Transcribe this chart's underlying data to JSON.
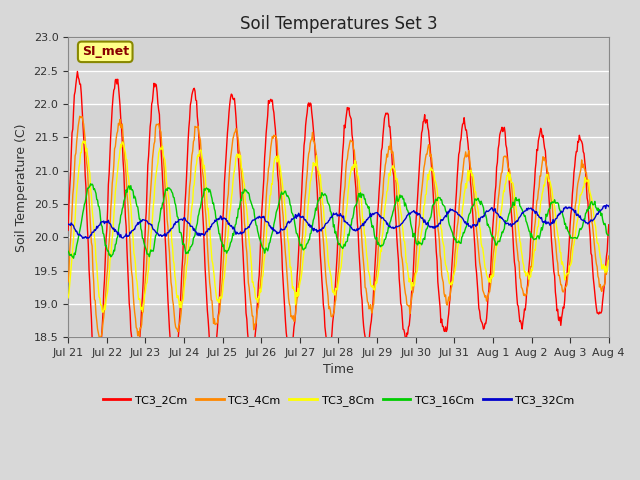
{
  "title": "Soil Temperatures Set 3",
  "xlabel": "Time",
  "ylabel": "Soil Temperature (C)",
  "ylim": [
    18.5,
    23.0
  ],
  "fig_facecolor": "#d8d8d8",
  "ax_facecolor": "#e0e0e0",
  "annotation_text": "SI_met",
  "annotation_bg": "#ffff88",
  "annotation_border": "#888800",
  "annotation_text_color": "#880000",
  "series_colors": [
    "#ff0000",
    "#ff8800",
    "#ffff00",
    "#00cc00",
    "#0000cc"
  ],
  "series_labels": [
    "TC3_2Cm",
    "TC3_4Cm",
    "TC3_8Cm",
    "TC3_16Cm",
    "TC3_32Cm"
  ],
  "x_tick_labels": [
    "Jul 21",
    "Jul 22",
    "Jul 23",
    "Jul 24",
    "Jul 25",
    "Jul 26",
    "Jul 27",
    "Jul 28",
    "Jul 29",
    "Jul 30",
    "Jul 31",
    "Aug 1",
    "Aug 2",
    "Aug 3",
    "Aug 4"
  ],
  "base_temp": 20.15,
  "n_points": 700,
  "duration_days": 14.0,
  "line_width": 1.0,
  "title_fontsize": 12,
  "axis_label_fontsize": 9,
  "tick_fontsize": 8,
  "legend_fontsize": 8
}
